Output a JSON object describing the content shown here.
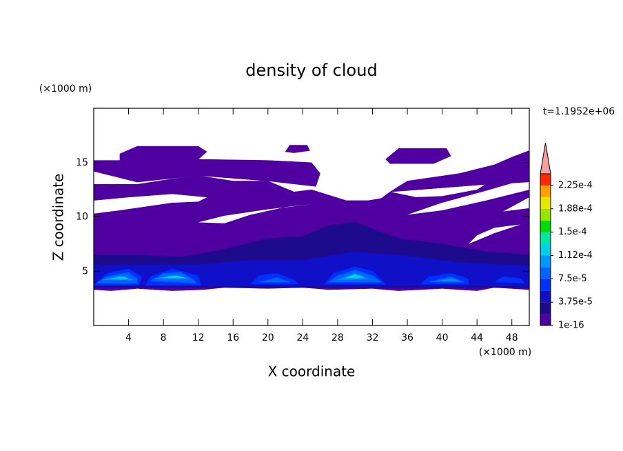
{
  "chart_data": {
    "type": "contour",
    "title": "density of cloud",
    "x_label": "X coordinate",
    "y_label": "Z coordinate",
    "x_unit": "(×1000 m)",
    "y_unit": "(×1000 m)",
    "time_label": "t=1.1952e+06",
    "xlim": [
      0,
      50
    ],
    "xticks": [
      4,
      8,
      12,
      16,
      20,
      24,
      28,
      32,
      36,
      40,
      44,
      48
    ],
    "ylim": [
      0,
      20
    ],
    "yticks": [
      5,
      10,
      15
    ],
    "levels": [
      1e-16,
      1.875e-05,
      3.75e-05,
      5.625e-05,
      7.5e-05,
      9.375e-05,
      0.0001125,
      0.00013125,
      0.00015,
      0.00016875,
      0.0001875,
      0.00020625,
      0.000225,
      0.00024375
    ],
    "colors": [
      "#5000a0",
      "#1e0a8c",
      "#1010c8",
      "#0030ff",
      "#0064ff",
      "#0096ff",
      "#00d2e6",
      "#00e6a0",
      "#00dc00",
      "#96e600",
      "#e6e600",
      "#ffa000",
      "#ff2800"
    ],
    "extend_color": "#f4a0a0",
    "colorbar_ticks": [
      {
        "value": 1e-16,
        "label": "1e-16"
      },
      {
        "value": 3.75e-05,
        "label": "3.75e-5"
      },
      {
        "value": 7.5e-05,
        "label": "7.5e-5"
      },
      {
        "value": 0.0001125,
        "label": "1.12e-4"
      },
      {
        "value": 0.00015,
        "label": "1.5e-4"
      },
      {
        "value": 0.0001875,
        "label": "1.88e-4"
      },
      {
        "value": 0.000225,
        "label": "2.25e-4"
      }
    ],
    "regions": [
      {
        "level": 1e-16,
        "points": [
          [
            0,
            3.3
          ],
          [
            2,
            3.2
          ],
          [
            5,
            3.4
          ],
          [
            9,
            3.2
          ],
          [
            12.6,
            3.3
          ],
          [
            15,
            3.5
          ],
          [
            20,
            3.4
          ],
          [
            24,
            3.5
          ],
          [
            27,
            3.3
          ],
          [
            32,
            3.4
          ],
          [
            35,
            3.2
          ],
          [
            40,
            3.4
          ],
          [
            44,
            3.2
          ],
          [
            46,
            3.5
          ],
          [
            50,
            3.3
          ],
          [
            50,
            13.3
          ],
          [
            48,
            14.2
          ],
          [
            46,
            13.5
          ],
          [
            44,
            12.5
          ],
          [
            42,
            12.2
          ],
          [
            40,
            11.9
          ],
          [
            37,
            11.8
          ],
          [
            34,
            12.3
          ],
          [
            33,
            11.7
          ],
          [
            31.5,
            11.5
          ],
          [
            29,
            11.5
          ],
          [
            25,
            12.5
          ],
          [
            23,
            12.3
          ],
          [
            20,
            13.3
          ],
          [
            16,
            13.3
          ],
          [
            12,
            13.8
          ],
          [
            9,
            13.5
          ],
          [
            5,
            13
          ],
          [
            2,
            13
          ],
          [
            0,
            13
          ]
        ]
      },
      {
        "level": 1e-16,
        "points": [
          [
            0,
            15.2
          ],
          [
            3,
            15.2
          ],
          [
            3,
            15.8
          ],
          [
            5,
            16.5
          ],
          [
            12,
            16.5
          ],
          [
            13,
            16
          ],
          [
            12,
            15.3
          ],
          [
            20,
            15.2
          ],
          [
            25,
            15
          ],
          [
            26,
            14
          ],
          [
            25.5,
            12.8
          ],
          [
            20,
            13.3
          ],
          [
            12,
            13.8
          ],
          [
            5,
            13.2
          ],
          [
            0,
            14.2
          ]
        ]
      },
      {
        "level": 1e-16,
        "points": [
          [
            33.5,
            15.3
          ],
          [
            35,
            16.3
          ],
          [
            40.5,
            16.3
          ],
          [
            41,
            15.6
          ],
          [
            39,
            14.9
          ],
          [
            34,
            14.9
          ]
        ]
      },
      {
        "level": 1e-16,
        "points": [
          [
            22,
            16
          ],
          [
            22.5,
            16.6
          ],
          [
            24.5,
            16.6
          ],
          [
            24.8,
            16.1
          ],
          [
            23,
            15.9
          ]
        ]
      },
      {
        "level": 1e-16,
        "points": [
          [
            34,
            12.3
          ],
          [
            36,
            13.3
          ],
          [
            42,
            14
          ],
          [
            46,
            14.8
          ],
          [
            48,
            15.5
          ],
          [
            50,
            16.1
          ],
          [
            50,
            13.3
          ]
        ]
      },
      {
        "level": 1.875e-05,
        "points": [
          [
            0,
            3.5
          ],
          [
            50,
            3.5
          ],
          [
            50,
            6.5
          ],
          [
            45,
            6.8
          ],
          [
            40,
            7.5
          ],
          [
            35,
            8
          ],
          [
            30,
            9.5
          ],
          [
            27,
            9.2
          ],
          [
            24,
            8.2
          ],
          [
            20,
            8
          ],
          [
            15,
            7
          ],
          [
            10,
            6.3
          ],
          [
            5,
            6.5
          ],
          [
            0,
            6.5
          ]
        ]
      },
      {
        "level": 3.75e-05,
        "points": [
          [
            0,
            3.6
          ],
          [
            50,
            3.6
          ],
          [
            50,
            5.5
          ],
          [
            42,
            5.8
          ],
          [
            36,
            6.4
          ],
          [
            30,
            6.8
          ],
          [
            24,
            6
          ],
          [
            18,
            6
          ],
          [
            12,
            5.6
          ],
          [
            6,
            5.6
          ],
          [
            0,
            5.5
          ]
        ]
      },
      {
        "level": 5.625e-05,
        "points": [
          [
            0,
            3.7
          ],
          [
            1.5,
            4.8
          ],
          [
            4,
            5.2
          ],
          [
            5.5,
            4.5
          ],
          [
            5.2,
            3.7
          ]
        ]
      },
      {
        "level": 5.625e-05,
        "points": [
          [
            6,
            3.7
          ],
          [
            6.5,
            4.5
          ],
          [
            9,
            5.2
          ],
          [
            12,
            4.6
          ],
          [
            12.3,
            3.7
          ]
        ]
      },
      {
        "level": 5.625e-05,
        "points": [
          [
            18,
            3.8
          ],
          [
            19,
            4.6
          ],
          [
            21,
            4.8
          ],
          [
            23,
            4.2
          ],
          [
            23.5,
            3.8
          ]
        ]
      },
      {
        "level": 5.625e-05,
        "points": [
          [
            26.5,
            3.8
          ],
          [
            27.5,
            4.8
          ],
          [
            30,
            5.4
          ],
          [
            32,
            5
          ],
          [
            33.5,
            3.8
          ]
        ]
      },
      {
        "level": 5.625e-05,
        "points": [
          [
            37.5,
            3.8
          ],
          [
            38.5,
            4.5
          ],
          [
            41,
            4.8
          ],
          [
            43,
            4.3
          ],
          [
            43,
            3.8
          ]
        ]
      },
      {
        "level": 5.625e-05,
        "points": [
          [
            46,
            4
          ],
          [
            47,
            4.5
          ],
          [
            49,
            4.3
          ],
          [
            49.5,
            3.9
          ]
        ]
      },
      {
        "level": 7.5e-05,
        "points": [
          [
            0.3,
            3.9
          ],
          [
            1.5,
            4.5
          ],
          [
            4,
            4.9
          ],
          [
            5,
            4.3
          ],
          [
            5,
            3.9
          ]
        ]
      },
      {
        "level": 7.5e-05,
        "points": [
          [
            6.5,
            4.1
          ],
          [
            8,
            4.8
          ],
          [
            10,
            4.9
          ],
          [
            11.5,
            4.2
          ],
          [
            11.8,
            3.9
          ]
        ]
      },
      {
        "level": 7.5e-05,
        "points": [
          [
            27,
            4
          ],
          [
            28,
            4.6
          ],
          [
            30,
            5.1
          ],
          [
            32,
            4.6
          ],
          [
            33,
            4
          ]
        ]
      },
      {
        "level": 7.5e-05,
        "points": [
          [
            38.5,
            4
          ],
          [
            41,
            4.5
          ],
          [
            42.5,
            4
          ]
        ]
      },
      {
        "level": 7.5e-05,
        "points": [
          [
            19,
            4
          ],
          [
            21,
            4.4
          ],
          [
            22.5,
            4
          ]
        ]
      },
      {
        "level": 9.375e-05,
        "points": [
          [
            1,
            4.2
          ],
          [
            3,
            4.6
          ],
          [
            4.5,
            4.2
          ]
        ]
      },
      {
        "level": 9.375e-05,
        "points": [
          [
            7,
            4.3
          ],
          [
            9,
            4.6
          ],
          [
            11,
            4.3
          ]
        ]
      },
      {
        "level": 9.375e-05,
        "points": [
          [
            28,
            4.2
          ],
          [
            30,
            4.8
          ],
          [
            31.5,
            4.3
          ]
        ]
      },
      {
        "level": 9.375e-05,
        "points": [
          [
            39.5,
            4.1
          ],
          [
            41,
            4.3
          ],
          [
            42,
            4.1
          ]
        ]
      },
      {
        "level": 0.0001125,
        "points": [
          [
            2,
            4.3
          ],
          [
            3.5,
            4.5
          ],
          [
            4,
            4.3
          ]
        ]
      },
      {
        "level": 0.0001125,
        "points": [
          [
            8,
            4.4
          ],
          [
            9.5,
            4.6
          ],
          [
            10.5,
            4.4
          ]
        ]
      },
      {
        "level": 0.0001125,
        "points": [
          [
            29,
            4.4
          ],
          [
            30,
            4.7
          ],
          [
            31,
            4.4
          ]
        ]
      }
    ],
    "clear_regions": [
      [
        [
          0,
          10.3
        ],
        [
          3,
          10.6
        ],
        [
          9,
          11.3
        ],
        [
          12,
          11.4
        ],
        [
          13,
          11.8
        ],
        [
          9,
          12.1
        ],
        [
          4,
          11.8
        ],
        [
          0,
          11.5
        ]
      ],
      [
        [
          12,
          9.5
        ],
        [
          15,
          9.4
        ],
        [
          18,
          10.2
        ],
        [
          22,
          10.9
        ],
        [
          25.5,
          11.2
        ],
        [
          20,
          10.7
        ],
        [
          15,
          10.1
        ]
      ],
      [
        [
          36,
          10.2
        ],
        [
          40,
          11.3
        ],
        [
          45,
          12.4
        ],
        [
          48,
          13.1
        ],
        [
          50,
          13.2
        ],
        [
          50,
          12.5
        ],
        [
          45,
          11.5
        ],
        [
          40,
          10.6
        ]
      ],
      [
        [
          43,
          7.5
        ],
        [
          46,
          8.5
        ],
        [
          49,
          9.3
        ],
        [
          46,
          9
        ],
        [
          44,
          8.3
        ]
      ],
      [
        [
          47,
          10.5
        ],
        [
          50,
          11.8
        ],
        [
          50,
          10.8
        ]
      ]
    ]
  }
}
